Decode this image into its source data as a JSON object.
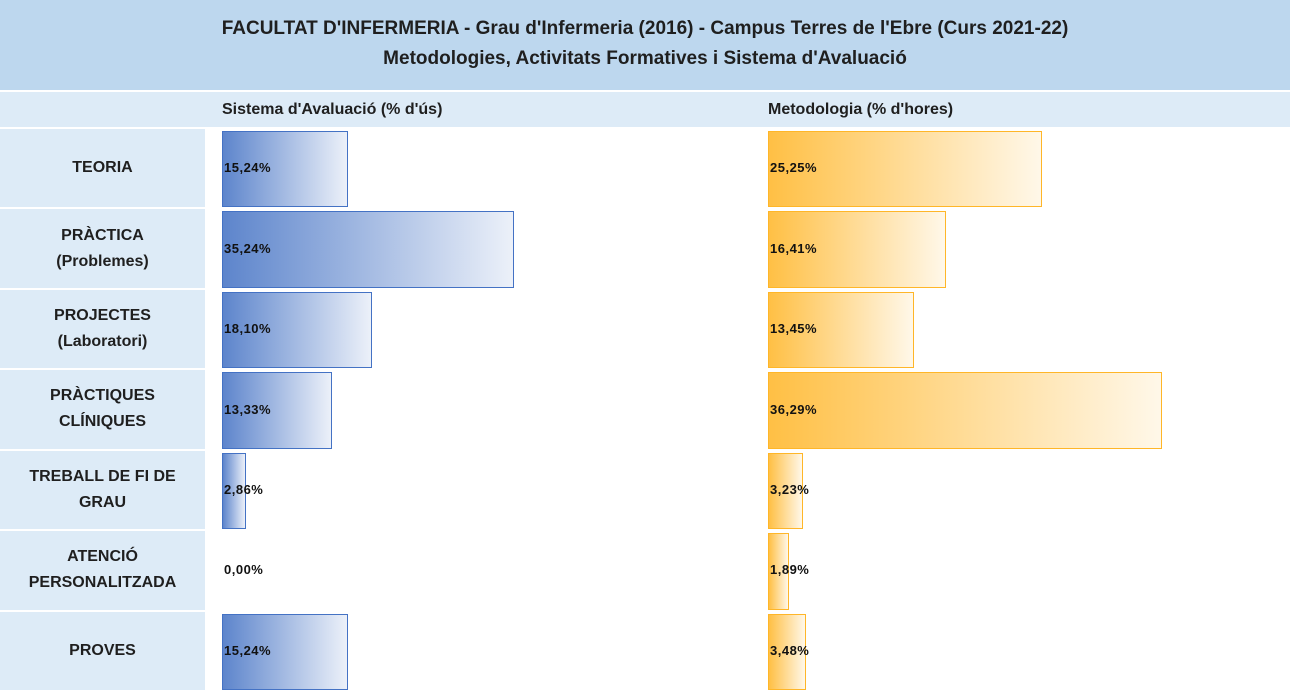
{
  "chart_data": {
    "type": "bar",
    "title": "FACULTAT D'INFERMERIA - Grau d'Infermeria (2016) - Campus Terres de l'Ebre (Curs 2021-22)",
    "subtitle": "Metodologies, Activitats Formatives i Sistema d'Avaluació",
    "categories": [
      "TEORIA",
      "PRÀCTICA (Problemes)",
      "PROJECTES (Laboratori)",
      "PRÀCTIQUES CLÍNIQUES",
      "TREBALL DE FI DE GRAU",
      "ATENCIÓ PERSONALITZADA",
      "PROVES"
    ],
    "series": [
      {
        "name": "Sistema d'Avaluació (% d'ús)",
        "color": "#4472c4",
        "values": [
          15.24,
          35.24,
          18.1,
          13.33,
          2.86,
          0.0,
          15.24
        ],
        "value_labels": [
          "15,24%",
          "35,24%",
          "18,10%",
          "13,33%",
          "2,86%",
          "0,00%",
          "15,24%"
        ]
      },
      {
        "name": "Metodologia (% d'hores)",
        "color": "#ffb628",
        "values": [
          25.25,
          16.41,
          13.45,
          36.29,
          3.23,
          1.89,
          3.48
        ],
        "value_labels": [
          "25,25%",
          "16,41%",
          "13,45%",
          "36,29%",
          "3,23%",
          "1,89%",
          "3,48%"
        ]
      }
    ]
  }
}
